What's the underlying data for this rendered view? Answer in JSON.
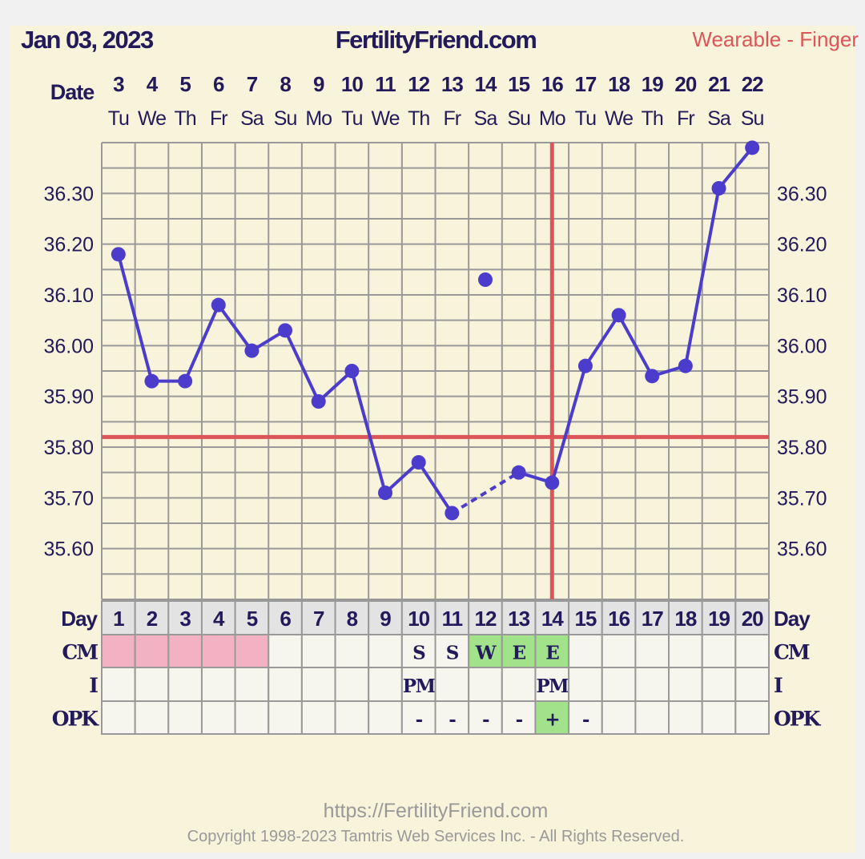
{
  "header": {
    "date": "Jan 03, 2023",
    "site": "FertilityFriend.com",
    "temp_method": "Wearable - Finger"
  },
  "row_labels": {
    "date": "Date",
    "day": "Day",
    "cm": "CM",
    "intercourse": "I",
    "opk": "OPK"
  },
  "footer": {
    "url": "https://FertilityFriend.com",
    "copyright": "Copyright 1998-2023 Tamtris Web Services Inc. - All Rights Reserved."
  },
  "colors": {
    "text": "#221a5a",
    "temp_line": "#4b3ccb",
    "coverline": "#dc5558",
    "ovulation_line": "#dc5558",
    "period": "#f3b2c4",
    "fertile": "#a1e28a",
    "header_method": "#dc5558"
  },
  "chart_data": {
    "type": "line",
    "ylim": [
      35.5,
      36.4
    ],
    "yticks": [
      "36.30",
      "36.20",
      "36.10",
      "36.00",
      "35.90",
      "35.80",
      "35.70",
      "35.60"
    ],
    "grid": true,
    "dates": [
      "3",
      "4",
      "5",
      "6",
      "7",
      "8",
      "9",
      "10",
      "11",
      "12",
      "13",
      "14",
      "15",
      "16",
      "17",
      "18",
      "19",
      "20",
      "21",
      "22"
    ],
    "weekdays": [
      "Tu",
      "We",
      "Th",
      "Fr",
      "Sa",
      "Su",
      "Mo",
      "Tu",
      "We",
      "Th",
      "Fr",
      "Sa",
      "Su",
      "Mo",
      "Tu",
      "We",
      "Th",
      "Fr",
      "Sa",
      "Su"
    ],
    "cycle_days": [
      "1",
      "2",
      "3",
      "4",
      "5",
      "6",
      "7",
      "8",
      "9",
      "10",
      "11",
      "12",
      "13",
      "14",
      "15",
      "16",
      "17",
      "18",
      "19",
      "20"
    ],
    "temperatures": [
      36.18,
      35.93,
      35.93,
      36.08,
      35.99,
      36.03,
      35.89,
      35.95,
      35.71,
      35.77,
      35.67,
      36.13,
      35.75,
      35.73,
      35.96,
      36.06,
      35.94,
      35.96,
      36.31,
      36.39
    ],
    "excluded_days": [
      12
    ],
    "coverline": 35.82,
    "ovulation_day": 14,
    "cm": [
      "",
      "",
      "",
      "",
      "",
      "",
      "",
      "",
      "",
      "S",
      "S",
      "W",
      "E",
      "E",
      "",
      "",
      "",
      "",
      "",
      ""
    ],
    "cm_fertile_days": [
      12,
      13,
      14
    ],
    "period_days": [
      1,
      2,
      3,
      4,
      5
    ],
    "intercourse": [
      "",
      "",
      "",
      "",
      "",
      "",
      "",
      "",
      "",
      "PM",
      "",
      "",
      "",
      "PM",
      "",
      "",
      "",
      "",
      "",
      ""
    ],
    "opk": [
      "",
      "",
      "",
      "",
      "",
      "",
      "",
      "",
      "",
      "-",
      "-",
      "-",
      "-",
      "+",
      "-",
      "",
      "",
      "",
      "",
      ""
    ],
    "opk_positive_days": [
      14
    ]
  }
}
